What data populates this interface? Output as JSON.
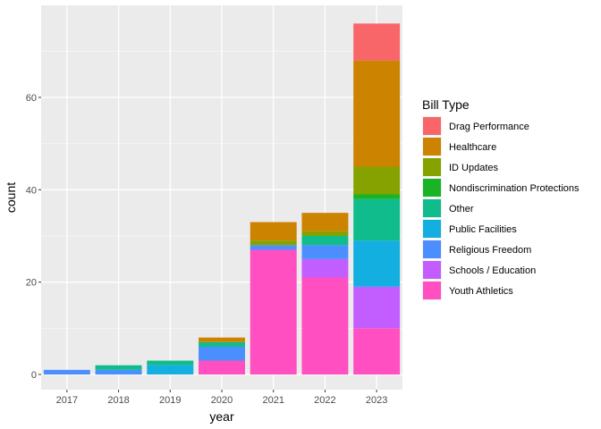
{
  "chart_data": {
    "type": "bar",
    "stacked": true,
    "title": "",
    "xlabel": "year",
    "ylabel": "count",
    "ylim": [
      0,
      76
    ],
    "yticks": [
      0,
      20,
      40,
      60
    ],
    "grid": true,
    "legend_position": "right",
    "legend_title": "Bill Type",
    "categories": [
      "2017",
      "2018",
      "2019",
      "2020",
      "2021",
      "2022",
      "2023"
    ],
    "series": [
      {
        "name": "Youth Athletics",
        "color": "#FF4FC0",
        "values": [
          0,
          0,
          0,
          3,
          27,
          21,
          10
        ]
      },
      {
        "name": "Schools / Education",
        "color": "#C25EFF",
        "values": [
          0,
          0,
          0,
          0,
          0,
          4,
          9
        ]
      },
      {
        "name": "Religious Freedom",
        "color": "#4B8FFF",
        "values": [
          1,
          1,
          0,
          3,
          1,
          3,
          0
        ]
      },
      {
        "name": "Public Facilities",
        "color": "#12AFE0",
        "values": [
          0,
          0,
          2,
          0,
          0,
          0,
          10
        ]
      },
      {
        "name": "Other",
        "color": "#10BC8C",
        "values": [
          0,
          1,
          1,
          1,
          0,
          2,
          9
        ]
      },
      {
        "name": "Nondiscrimination Protections",
        "color": "#18B426",
        "values": [
          0,
          0,
          0,
          0,
          0,
          0,
          1
        ]
      },
      {
        "name": "ID Updates",
        "color": "#86A200",
        "values": [
          0,
          0,
          0,
          0,
          1,
          1,
          6
        ]
      },
      {
        "name": "Healthcare",
        "color": "#CC8300",
        "values": [
          0,
          0,
          0,
          1,
          4,
          4,
          23
        ]
      },
      {
        "name": "Drag Performance",
        "color": "#F8666A",
        "values": [
          0,
          0,
          0,
          0,
          0,
          0,
          8
        ]
      }
    ],
    "legend_order": [
      "Drag Performance",
      "Healthcare",
      "ID Updates",
      "Nondiscrimination Protections",
      "Other",
      "Public Facilities",
      "Religious Freedom",
      "Schools / Education",
      "Youth Athletics"
    ]
  }
}
